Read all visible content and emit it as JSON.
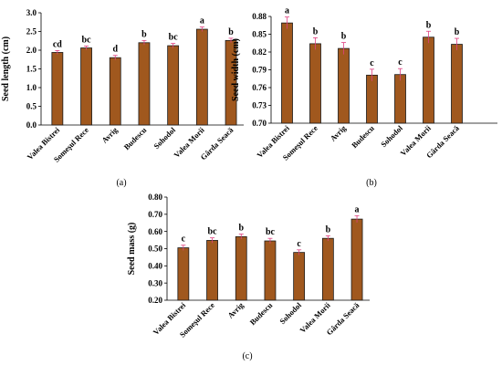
{
  "chart_data": [
    {
      "type": "bar",
      "panel_label": "(a)",
      "categories": [
        "Valea Bistrei",
        "Someşul Rece",
        "Avrig",
        "Budescu",
        "Sohodol",
        "Valea Morii",
        "Gârda Seacă"
      ],
      "values": [
        1.94,
        2.06,
        1.8,
        2.2,
        2.12,
        2.56,
        2.26
      ],
      "errors": [
        0.05,
        0.05,
        0.06,
        0.06,
        0.06,
        0.06,
        0.06
      ],
      "letters": [
        "cd",
        "bc",
        "d",
        "b",
        "bc",
        "a",
        "b"
      ],
      "ylabel": "Seed length (cm)",
      "xlabel": "",
      "ylim": [
        0.0,
        3.0
      ],
      "yticks": [
        "0.0",
        "0.5",
        "1.0",
        "1.5",
        "2.0",
        "2.5",
        "3.0"
      ],
      "grid": false
    },
    {
      "type": "bar",
      "panel_label": "(b)",
      "categories": [
        "Valea Bistrei",
        "Someşul Rece",
        "Avrig",
        "Budescu",
        "Sohodol",
        "Valea Morii",
        "Gârda Seacă"
      ],
      "values": [
        0.869,
        0.834,
        0.826,
        0.781,
        0.782,
        0.845,
        0.833
      ],
      "errors": [
        0.01,
        0.01,
        0.01,
        0.01,
        0.01,
        0.01,
        0.01
      ],
      "letters": [
        "a",
        "b",
        "b",
        "c",
        "c",
        "b",
        "b"
      ],
      "ylabel": "Seed width (cm)",
      "xlabel": "",
      "ylim": [
        0.7,
        0.88
      ],
      "yticks": [
        "0.70",
        "0.73",
        "0.76",
        "0.79",
        "0.82",
        "0.85",
        "0.88"
      ],
      "grid": false
    },
    {
      "type": "bar",
      "panel_label": "(c)",
      "categories": [
        "Valea Bistrei",
        "Someşul Rece",
        "Avrig",
        "Budescu",
        "Sohodol",
        "Valea Morii",
        "Gârda Seacă"
      ],
      "values": [
        0.505,
        0.548,
        0.57,
        0.545,
        0.478,
        0.56,
        0.672
      ],
      "errors": [
        0.015,
        0.015,
        0.015,
        0.015,
        0.015,
        0.015,
        0.02
      ],
      "letters": [
        "c",
        "bc",
        "b",
        "bc",
        "c",
        "b",
        "a"
      ],
      "ylabel": "Seed mass (g)",
      "xlabel": "",
      "ylim": [
        0.2,
        0.8
      ],
      "yticks": [
        "0.20",
        "0.30",
        "0.40",
        "0.50",
        "0.60",
        "0.70",
        "0.80"
      ],
      "grid": false
    }
  ],
  "colors": {
    "bar_fill": "#A0581E",
    "bar_stroke": "#1a1a1a",
    "error_bar": "#E04080",
    "axis": "#000000",
    "text": "#000000"
  }
}
